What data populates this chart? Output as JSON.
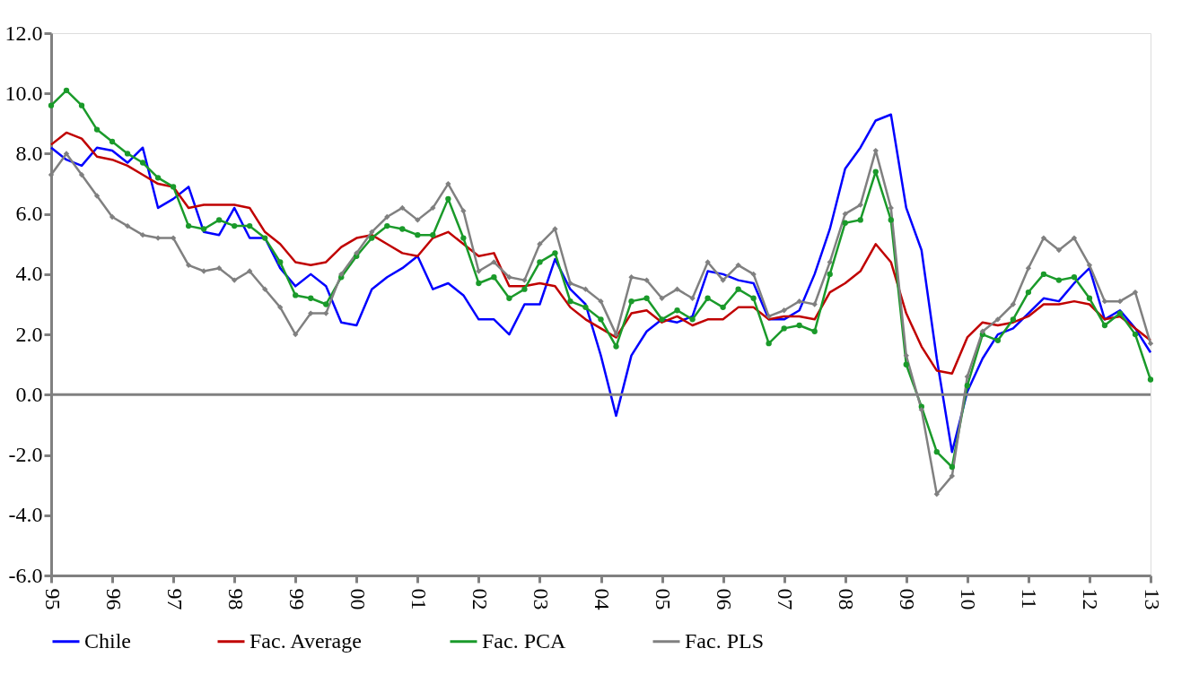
{
  "chart_data": {
    "type": "line",
    "x": [
      1995,
      1995.25,
      1995.5,
      1995.75,
      1996,
      1996.25,
      1996.5,
      1996.75,
      1997,
      1997.25,
      1997.5,
      1997.75,
      1998,
      1998.25,
      1998.5,
      1998.75,
      1999,
      1999.25,
      1999.5,
      1999.75,
      2000,
      2000.25,
      2000.5,
      2000.75,
      2001,
      2001.25,
      2001.5,
      2001.75,
      2002,
      2002.25,
      2002.5,
      2002.75,
      2003,
      2003.25,
      2003.5,
      2003.75,
      2004,
      2004.25,
      2004.5,
      2004.75,
      2005,
      2005.25,
      2005.5,
      2005.75,
      2006,
      2006.25,
      2006.5,
      2006.75,
      2007,
      2007.25,
      2007.5,
      2007.75,
      2008,
      2008.25,
      2008.5,
      2008.75,
      2009,
      2009.25,
      2009.5,
      2009.75,
      2010,
      2010.25,
      2010.5,
      2010.75,
      2011,
      2011.25,
      2011.5,
      2011.75,
      2012,
      2012.25,
      2012.5,
      2012.75,
      2013
    ],
    "series": [
      {
        "name": "Chile",
        "color": "#0000ff",
        "marker": "none",
        "values": [
          8.2,
          7.8,
          7.6,
          8.2,
          8.1,
          7.7,
          8.2,
          6.2,
          6.5,
          6.9,
          5.4,
          5.3,
          6.2,
          5.2,
          5.2,
          4.2,
          3.6,
          4.0,
          3.6,
          2.4,
          2.3,
          3.5,
          3.9,
          4.2,
          4.6,
          3.5,
          3.7,
          3.3,
          2.5,
          2.5,
          2.0,
          3.0,
          3.0,
          4.5,
          3.5,
          3.0,
          1.3,
          -0.7,
          1.3,
          2.1,
          2.5,
          2.4,
          2.6,
          4.1,
          4.0,
          3.8,
          3.7,
          2.5,
          2.5,
          2.8,
          4.0,
          5.5,
          7.5,
          8.2,
          9.1,
          9.3,
          6.2,
          4.8,
          1.2,
          -1.9,
          0.1,
          1.2,
          2.0,
          2.2,
          2.7,
          3.2,
          3.1,
          3.7,
          4.2,
          2.5,
          2.8,
          2.2,
          1.4
        ]
      },
      {
        "name": "Fac. Average",
        "color": "#c00000",
        "marker": "none",
        "values": [
          8.3,
          8.7,
          8.5,
          7.9,
          7.8,
          7.6,
          7.3,
          7.0,
          6.9,
          6.2,
          6.3,
          6.3,
          6.3,
          6.2,
          5.4,
          5.0,
          4.4,
          4.3,
          4.4,
          4.9,
          5.2,
          5.3,
          5.0,
          4.7,
          4.6,
          5.2,
          5.4,
          5.0,
          4.6,
          4.7,
          3.6,
          3.6,
          3.7,
          3.6,
          2.9,
          2.5,
          2.2,
          1.9,
          2.7,
          2.8,
          2.4,
          2.6,
          2.3,
          2.5,
          2.5,
          2.9,
          2.9,
          2.5,
          2.6,
          2.6,
          2.5,
          3.4,
          3.7,
          4.1,
          5.0,
          4.4,
          2.7,
          1.6,
          0.8,
          0.7,
          1.9,
          2.4,
          2.3,
          2.4,
          2.6,
          3.0,
          3.0,
          3.1,
          3.0,
          2.5,
          2.6,
          2.2,
          1.8
        ]
      },
      {
        "name": "Fac. PCA",
        "color": "#1a9a2a",
        "marker": "circle",
        "values": [
          9.6,
          10.1,
          9.6,
          8.8,
          8.4,
          8.0,
          7.7,
          7.2,
          6.9,
          5.6,
          5.5,
          5.8,
          5.6,
          5.6,
          5.2,
          4.4,
          3.3,
          3.2,
          3.0,
          3.9,
          4.6,
          5.2,
          5.6,
          5.5,
          5.3,
          5.3,
          6.5,
          5.2,
          3.7,
          3.9,
          3.2,
          3.5,
          4.4,
          4.7,
          3.1,
          2.9,
          2.5,
          1.6,
          3.1,
          3.2,
          2.5,
          2.8,
          2.5,
          3.2,
          2.9,
          3.5,
          3.2,
          1.7,
          2.2,
          2.3,
          2.1,
          4.0,
          5.7,
          5.8,
          7.4,
          5.8,
          1.0,
          -0.4,
          -1.9,
          -2.4,
          0.3,
          2.0,
          1.8,
          2.5,
          3.4,
          4.0,
          3.8,
          3.9,
          3.2,
          2.3,
          2.7,
          2.0,
          0.5
        ]
      },
      {
        "name": "Fac. PLS",
        "color": "#808080",
        "marker": "diamond",
        "values": [
          7.3,
          8.0,
          7.3,
          6.6,
          5.9,
          5.6,
          5.3,
          5.2,
          5.2,
          4.3,
          4.1,
          4.2,
          3.8,
          4.1,
          3.5,
          2.9,
          2.0,
          2.7,
          2.7,
          4.0,
          4.7,
          5.4,
          5.9,
          6.2,
          5.8,
          6.2,
          7.0,
          6.1,
          4.1,
          4.4,
          3.9,
          3.8,
          5.0,
          5.5,
          3.7,
          3.5,
          3.1,
          2.0,
          3.9,
          3.8,
          3.2,
          3.5,
          3.2,
          4.4,
          3.8,
          4.3,
          4.0,
          2.6,
          2.8,
          3.1,
          3.0,
          4.4,
          6.0,
          6.3,
          8.1,
          6.2,
          1.3,
          -0.5,
          -3.3,
          -2.7,
          0.6,
          2.1,
          2.5,
          3.0,
          4.2,
          5.2,
          4.8,
          5.2,
          4.3,
          3.1,
          3.1,
          3.4,
          1.7
        ]
      }
    ],
    "xlim": [
      1995,
      2013
    ],
    "xticks": [
      {
        "value": 1995,
        "label": "95"
      },
      {
        "value": 1996,
        "label": "96"
      },
      {
        "value": 1997,
        "label": "97"
      },
      {
        "value": 1998,
        "label": "98"
      },
      {
        "value": 1999,
        "label": "99"
      },
      {
        "value": 2000,
        "label": "00"
      },
      {
        "value": 2001,
        "label": "01"
      },
      {
        "value": 2002,
        "label": "02"
      },
      {
        "value": 2003,
        "label": "03"
      },
      {
        "value": 2004,
        "label": "04"
      },
      {
        "value": 2005,
        "label": "05"
      },
      {
        "value": 2006,
        "label": "06"
      },
      {
        "value": 2007,
        "label": "07"
      },
      {
        "value": 2008,
        "label": "08"
      },
      {
        "value": 2009,
        "label": "09"
      },
      {
        "value": 2010,
        "label": "10"
      },
      {
        "value": 2011,
        "label": "11"
      },
      {
        "value": 2012,
        "label": "12"
      },
      {
        "value": 2013,
        "label": "13"
      }
    ],
    "ylim": [
      -6,
      12
    ],
    "yticks": [
      {
        "value": -6,
        "label": "-6.0"
      },
      {
        "value": -4,
        "label": "-4.0"
      },
      {
        "value": -2,
        "label": "-2.0"
      },
      {
        "value": 0,
        "label": "0.0"
      },
      {
        "value": 2,
        "label": "2.0"
      },
      {
        "value": 4,
        "label": "4.0"
      },
      {
        "value": 6,
        "label": "6.0"
      },
      {
        "value": 8,
        "label": "8.0"
      },
      {
        "value": 10,
        "label": "10.0"
      },
      {
        "value": 12,
        "label": "12.0"
      }
    ],
    "ref_lines": [
      {
        "axis": "y",
        "value": 0,
        "color": "#808080",
        "line_style": "solid"
      }
    ],
    "grid": false,
    "legend": "bottom",
    "line_style": "solid"
  }
}
